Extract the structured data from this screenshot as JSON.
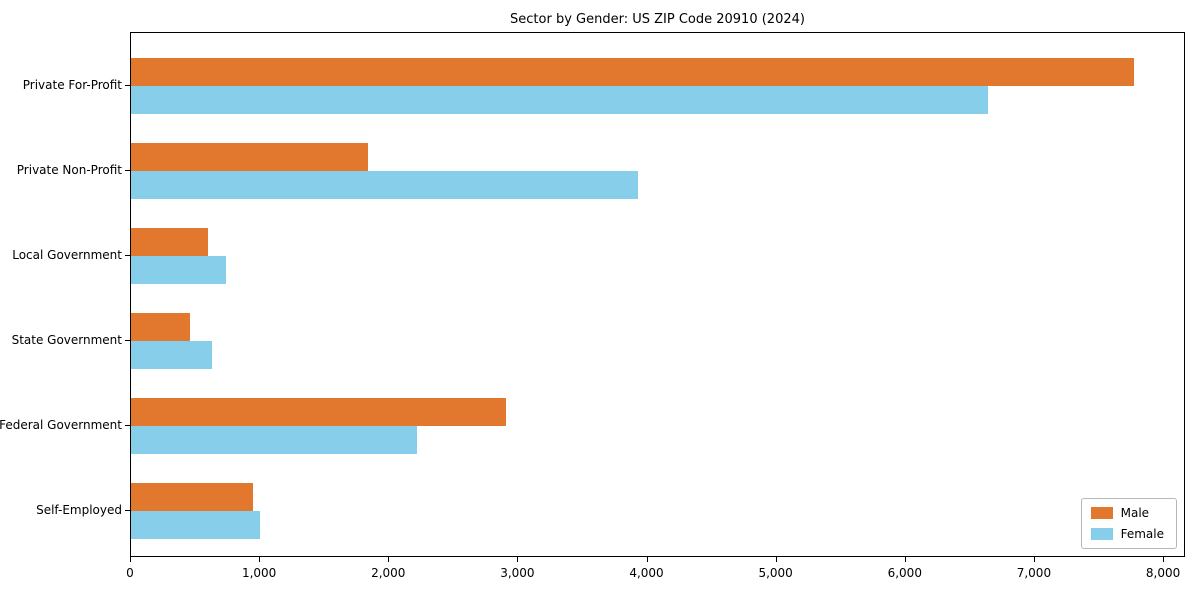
{
  "chart_data": {
    "type": "bar",
    "orientation": "horizontal",
    "title": "Sector by Gender: US ZIP Code 20910 (2024)",
    "categories": [
      "Private For-Profit",
      "Private Non-Profit",
      "Local Government",
      "State Government",
      "Federal Government",
      "Self-Employed"
    ],
    "series": [
      {
        "name": "Male",
        "color": "#e2772e",
        "values": [
          7780,
          1840,
          600,
          460,
          2910,
          950
        ]
      },
      {
        "name": "Female",
        "color": "#87ceeb",
        "values": [
          6650,
          3930,
          740,
          630,
          2220,
          1000
        ]
      }
    ],
    "xlim": [
      0,
      8170
    ],
    "x_ticks": [
      0,
      1000,
      2000,
      3000,
      4000,
      5000,
      6000,
      7000,
      8000
    ],
    "x_tick_labels": [
      "0",
      "1,000",
      "2,000",
      "3,000",
      "4,000",
      "5,000",
      "6,000",
      "7,000",
      "8,000"
    ],
    "legend_position": "lower right",
    "grid": false,
    "xlabel": "",
    "ylabel": ""
  }
}
